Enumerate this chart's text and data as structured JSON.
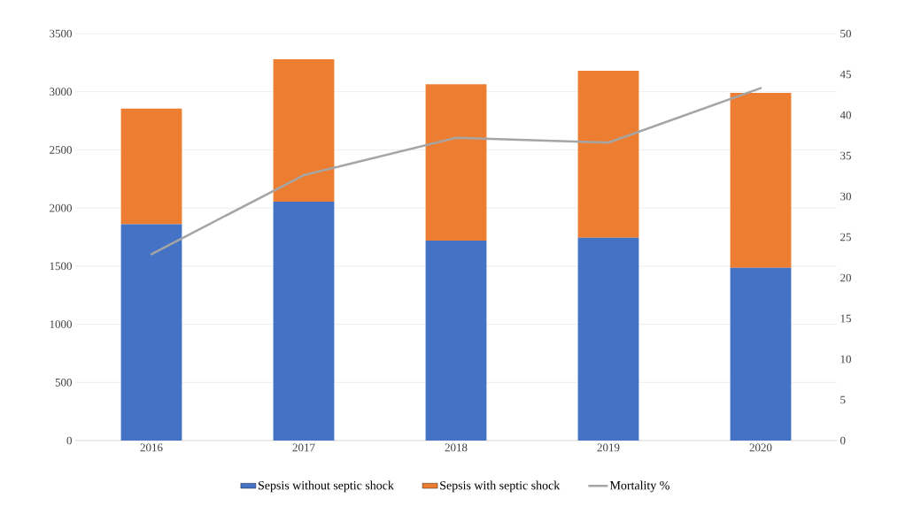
{
  "chart_data": {
    "type": "bar",
    "stacked": true,
    "categories": [
      "2016",
      "2017",
      "2018",
      "2019",
      "2020"
    ],
    "series": [
      {
        "name": "Sepsis without septic shock",
        "color": "#4472c4",
        "values": [
          1860,
          2055,
          1720,
          1745,
          1485
        ]
      },
      {
        "name": "Sepsis with septic shock",
        "color": "#ed7d31",
        "values": [
          995,
          1225,
          1345,
          1435,
          1505
        ]
      },
      {
        "name": "Mortality %",
        "color": "#a5a5a5",
        "type": "line",
        "axis": "y2",
        "values": [
          22.9,
          32.6,
          37.2,
          36.6,
          43.3
        ]
      }
    ],
    "ylim": [
      0,
      3500
    ],
    "yticks": [
      0,
      500,
      1000,
      1500,
      2000,
      2500,
      3000,
      3500
    ],
    "y2lim": [
      0,
      50
    ],
    "y2ticks": [
      0,
      5,
      10,
      15,
      20,
      25,
      30,
      35,
      40,
      45,
      50
    ],
    "grid": "y",
    "legend": "bottom"
  }
}
